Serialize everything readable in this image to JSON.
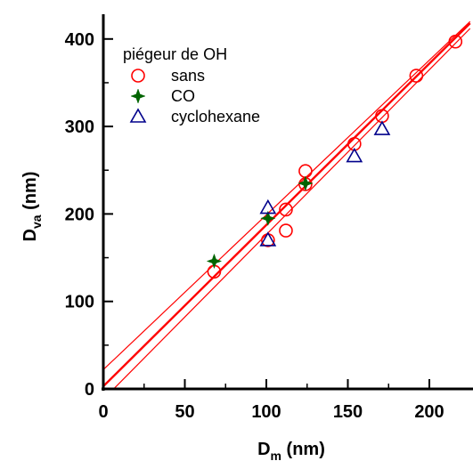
{
  "chart_data": {
    "type": "scatter",
    "xlabel": {
      "main": "D",
      "sub": "m",
      "rest": " (nm)"
    },
    "ylabel": {
      "main": "D",
      "sub": "va",
      "rest": " (nm)"
    },
    "xlim": [
      0,
      225
    ],
    "ylim": [
      0,
      430
    ],
    "x_ticks": [
      0,
      50,
      100,
      150,
      200
    ],
    "y_ticks": [
      0,
      100,
      200,
      300,
      400
    ],
    "legend": {
      "title": "piégeur de OH",
      "position": "top-left"
    },
    "series": [
      {
        "name": "sans",
        "marker": "circle",
        "color": "#ff0000",
        "points": [
          [
            68,
            134
          ],
          [
            101,
            170
          ],
          [
            112,
            205
          ],
          [
            112,
            181
          ],
          [
            124,
            249
          ],
          [
            124,
            234
          ],
          [
            154,
            280
          ],
          [
            171,
            312
          ],
          [
            192,
            358
          ],
          [
            216,
            397
          ]
        ]
      },
      {
        "name": "CO",
        "marker": "star",
        "color": "#006400",
        "points": [
          [
            68,
            146
          ],
          [
            101,
            195
          ],
          [
            124,
            235
          ]
        ]
      },
      {
        "name": "cyclohexane",
        "marker": "triangle",
        "color": "#00008b",
        "points": [
          [
            101,
            207
          ],
          [
            101,
            170
          ],
          [
            154,
            266
          ],
          [
            171,
            297
          ]
        ]
      }
    ],
    "fit_lines": {
      "color": "#ff0000",
      "fit": [
        [
          0,
          3
        ],
        [
          225,
          418
        ]
      ],
      "band_upper": [
        [
          0,
          22
        ],
        [
          225,
          420
        ]
      ],
      "band_lower": [
        [
          0,
          -12
        ],
        [
          225,
          412
        ]
      ]
    }
  }
}
